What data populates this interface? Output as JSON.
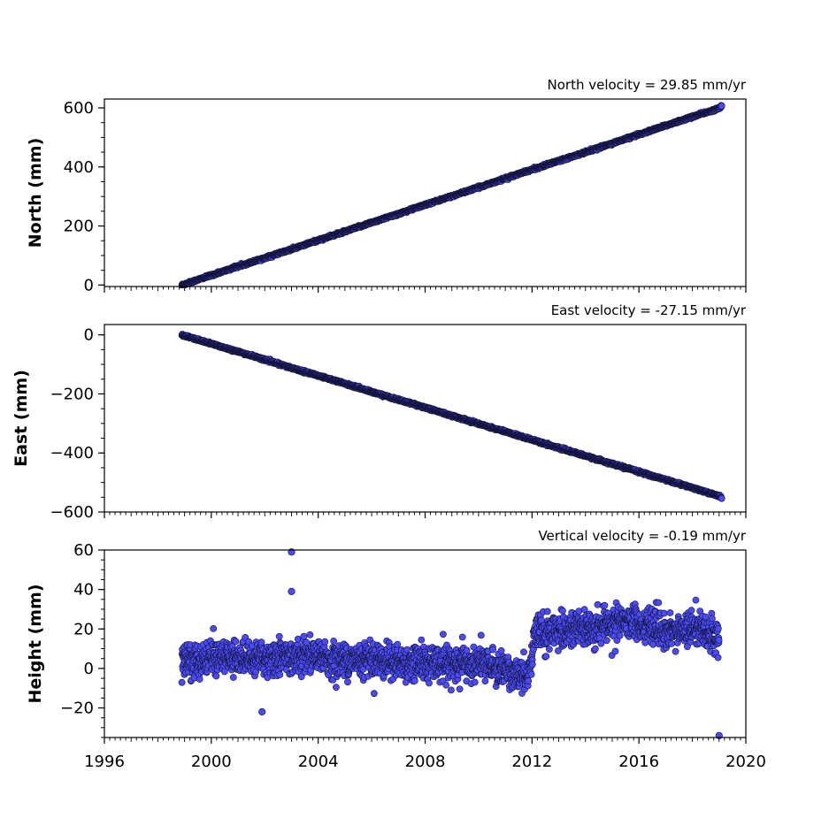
{
  "chart_data": [
    {
      "type": "scatter",
      "title": "North velocity = 29.85 mm/yr",
      "xlabel": "",
      "ylabel": "North (mm)",
      "xlim": [
        1996,
        2020
      ],
      "ylim": [
        -5,
        630
      ],
      "yticks": [
        0,
        200,
        400,
        600
      ],
      "ytick_labels": [
        "0",
        "200",
        "400",
        "600"
      ],
      "velocity_mm_per_yr": 29.85,
      "marker_color": "#4b4bf5",
      "marker_edge": "#14143c",
      "series": [
        {
          "x": [
            1998.9,
            1999.5,
            2000.0,
            2001.0,
            2002.0,
            2003.0,
            2004.0,
            2005.0,
            2006.0,
            2007.0,
            2008.0,
            2009.0,
            2010.0,
            2011.0,
            2012.0,
            2013.0,
            2014.0,
            2015.0,
            2016.0,
            2017.0,
            2018.0,
            2018.5,
            2019.0,
            2019.1
          ],
          "y": [
            0,
            18,
            33,
            63,
            92,
            121,
            152,
            181,
            212,
            241,
            272,
            301,
            331,
            361,
            391,
            421,
            450,
            480,
            510,
            540,
            570,
            584,
            599,
            608
          ]
        }
      ]
    },
    {
      "type": "scatter",
      "title": "East velocity = -27.15 mm/yr",
      "xlabel": "",
      "ylabel": "East (mm)",
      "xlim": [
        1996,
        2020
      ],
      "ylim": [
        -600,
        35
      ],
      "yticks": [
        0,
        -200,
        -400,
        -600
      ],
      "ytick_labels": [
        "0",
        "−200",
        "−400",
        "−600"
      ],
      "velocity_mm_per_yr": -27.15,
      "marker_color": "#4b4bf5",
      "marker_edge": "#14143c",
      "series": [
        {
          "x": [
            1998.9,
            1999.5,
            2000.0,
            2001.0,
            2002.0,
            2003.0,
            2004.0,
            2005.0,
            2006.0,
            2007.0,
            2008.0,
            2009.0,
            2010.0,
            2011.0,
            2012.0,
            2013.0,
            2014.0,
            2015.0,
            2016.0,
            2017.0,
            2018.0,
            2018.5,
            2019.0,
            2019.1
          ],
          "y": [
            0,
            -17,
            -30,
            -57,
            -84,
            -112,
            -138,
            -165,
            -193,
            -220,
            -246,
            -274,
            -301,
            -328,
            -355,
            -383,
            -410,
            -437,
            -464,
            -491,
            -518,
            -532,
            -546,
            -552
          ]
        }
      ]
    },
    {
      "type": "scatter",
      "title": "Vertical velocity = -0.19 mm/yr",
      "xlabel": "",
      "ylabel": "Height (mm)",
      "xlim": [
        1996,
        2020
      ],
      "ylim": [
        -35,
        60
      ],
      "yticks": [
        -20,
        0,
        20,
        40,
        60
      ],
      "ytick_labels": [
        "−20",
        "0",
        "20",
        "40",
        "60"
      ],
      "xticks": [
        1996,
        2000,
        2004,
        2008,
        2012,
        2016,
        2020
      ],
      "xtick_labels": [
        "1996",
        "2000",
        "2004",
        "2008",
        "2012",
        "2016",
        "2020"
      ],
      "velocity_mm_per_yr": -0.19,
      "marker_color": "#4b4bf5",
      "marker_edge": "#14143c",
      "series": [
        {
          "x": [
            1998.9,
            1999.5,
            2000.0,
            2001.0,
            2002.0,
            2003.0,
            2004.0,
            2005.0,
            2006.0,
            2007.0,
            2008.0,
            2009.0,
            2010.0,
            2010.8,
            2011.5,
            2011.9,
            2012.1,
            2013.0,
            2014.0,
            2015.0,
            2015.7,
            2016.5,
            2017.0,
            2018.0,
            2019.0
          ],
          "y": [
            2,
            4,
            6,
            6,
            5,
            6,
            5,
            4,
            5,
            3,
            3,
            2,
            2,
            0,
            -3,
            -2,
            18,
            19,
            20,
            22,
            24,
            22,
            18,
            20,
            17
          ]
        },
        {
          "name": "",
          "x": [
            2003.0,
            2003.0,
            2001.9,
            2019.0
          ],
          "y": [
            59,
            39,
            -22,
            -34
          ]
        }
      ]
    }
  ]
}
